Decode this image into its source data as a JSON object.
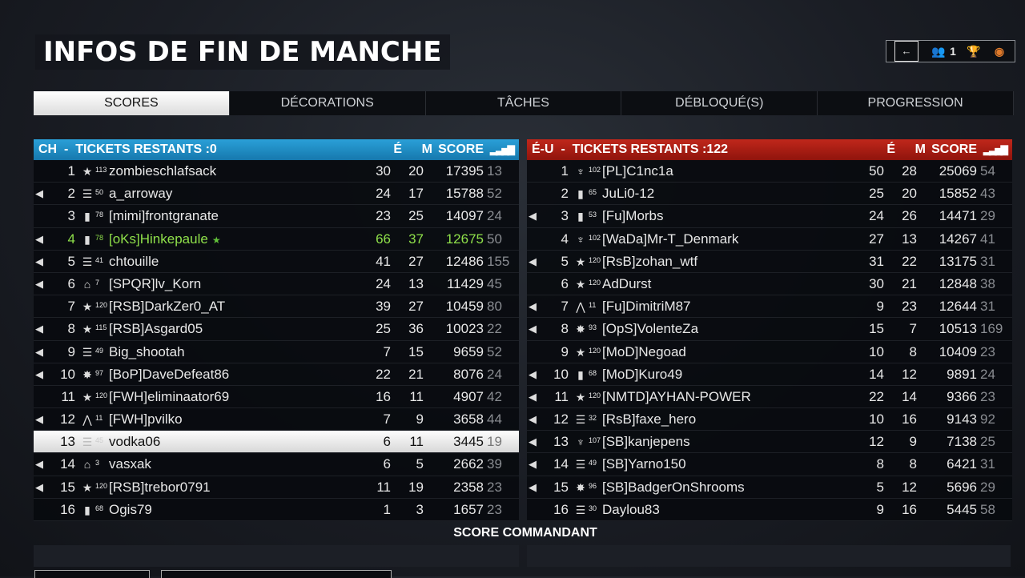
{
  "title": "INFOS DE FIN DE MANCHE",
  "top_icons": {
    "exit": "exit-icon",
    "squad_icon": "squad-icon",
    "squad_count": "1",
    "trophy": "trophy-icon",
    "globe": "globe-icon",
    "globe_color": "#e07a2a"
  },
  "tabs": [
    {
      "label": "SCORES",
      "active": true
    },
    {
      "label": "DÉCORATIONS"
    },
    {
      "label": "TÂCHES"
    },
    {
      "label": "DÉBLOQUÉ(S)"
    },
    {
      "label": "PROGRESSION"
    }
  ],
  "teams": [
    {
      "header": "CH  -  TICKETS RESTANTS :0",
      "col_kills": "É",
      "col_deaths": "M",
      "col_score": "SCORE",
      "col_ping": "signal-icon",
      "color": "#1f8fc8",
      "players": [
        {
          "rank": "1",
          "icon": "star",
          "level": "113",
          "name": "zombieschlafsack",
          "kills": "30",
          "deaths": "20",
          "score": "17395",
          "ping": "13",
          "voice": false
        },
        {
          "rank": "2",
          "icon": "chevrons",
          "level": "50",
          "name": "a_arroway",
          "kills": "24",
          "deaths": "17",
          "score": "15788",
          "ping": "52",
          "voice": true
        },
        {
          "rank": "3",
          "icon": "bar",
          "level": "78",
          "name": "[mimi]frontgranate",
          "kills": "23",
          "deaths": "25",
          "score": "14097",
          "ping": "24",
          "voice": false
        },
        {
          "rank": "4",
          "icon": "bar",
          "level": "78",
          "name": "[oKs]Hinkepaule",
          "kills": "66",
          "deaths": "37",
          "score": "12675",
          "ping": "50",
          "voice": true,
          "highlight": "friend"
        },
        {
          "rank": "5",
          "icon": "chevrons",
          "level": "41",
          "name": "chtouille",
          "kills": "41",
          "deaths": "27",
          "score": "12486",
          "ping": "155",
          "voice": true
        },
        {
          "rank": "6",
          "icon": "arch",
          "level": "7",
          "name": "[SPQR]lv_Korn",
          "kills": "24",
          "deaths": "13",
          "score": "11429",
          "ping": "45",
          "voice": true
        },
        {
          "rank": "7",
          "icon": "star",
          "level": "120",
          "name": "[RSB]DarkZer0_AT",
          "kills": "39",
          "deaths": "27",
          "score": "10459",
          "ping": "80",
          "voice": false
        },
        {
          "rank": "8",
          "icon": "star",
          "level": "115",
          "name": "[RSB]Asgard05",
          "kills": "25",
          "deaths": "36",
          "score": "10023",
          "ping": "22",
          "voice": true
        },
        {
          "rank": "9",
          "icon": "chevrons",
          "level": "49",
          "name": "Big_shootah",
          "kills": "7",
          "deaths": "15",
          "score": "9659",
          "ping": "52",
          "voice": true
        },
        {
          "rank": "10",
          "icon": "burst",
          "level": "97",
          "name": "[BoP]DaveDefeat86",
          "kills": "22",
          "deaths": "21",
          "score": "8076",
          "ping": "24",
          "voice": true
        },
        {
          "rank": "11",
          "icon": "star",
          "level": "120",
          "name": "[FWH]eliminaator69",
          "kills": "16",
          "deaths": "11",
          "score": "4907",
          "ping": "42",
          "voice": false
        },
        {
          "rank": "12",
          "icon": "double-chevron",
          "level": "11",
          "name": "[FWH]pvilko",
          "kills": "7",
          "deaths": "9",
          "score": "3658",
          "ping": "44",
          "voice": true
        },
        {
          "rank": "13",
          "icon": "chevrons",
          "level": "45",
          "name": "vodka06",
          "kills": "6",
          "deaths": "11",
          "score": "3445",
          "ping": "19",
          "voice": false,
          "highlight": "self"
        },
        {
          "rank": "14",
          "icon": "arch",
          "level": "3",
          "name": "vasxak",
          "kills": "6",
          "deaths": "5",
          "score": "2662",
          "ping": "39",
          "voice": true
        },
        {
          "rank": "15",
          "icon": "star",
          "level": "120",
          "name": "[RSB]trebor0791",
          "kills": "11",
          "deaths": "19",
          "score": "2358",
          "ping": "23",
          "voice": true
        },
        {
          "rank": "16",
          "icon": "bar",
          "level": "68",
          "name": "Ogis79",
          "kills": "1",
          "deaths": "3",
          "score": "1657",
          "ping": "23",
          "voice": false
        }
      ]
    },
    {
      "header": "É-U  -  TICKETS RESTANTS :122",
      "col_kills": "É",
      "col_deaths": "M",
      "col_score": "SCORE",
      "col_ping": "signal-icon",
      "color": "#b3241a",
      "players": [
        {
          "rank": "1",
          "icon": "eagle",
          "level": "102",
          "name": "[PL]C1nc1a",
          "kills": "50",
          "deaths": "28",
          "score": "25069",
          "ping": "54",
          "voice": false
        },
        {
          "rank": "2",
          "icon": "bar",
          "level": "65",
          "name": "JuLi0-12",
          "kills": "25",
          "deaths": "20",
          "score": "15852",
          "ping": "43",
          "voice": false
        },
        {
          "rank": "3",
          "icon": "bar",
          "level": "53",
          "name": "[Fu]Morbs",
          "kills": "24",
          "deaths": "26",
          "score": "14471",
          "ping": "29",
          "voice": true
        },
        {
          "rank": "4",
          "icon": "eagle",
          "level": "102",
          "name": "[WaDa]Mr-T_Denmark",
          "kills": "27",
          "deaths": "13",
          "score": "14267",
          "ping": "41",
          "voice": false
        },
        {
          "rank": "5",
          "icon": "star",
          "level": "120",
          "name": "[RsB]zohan_wtf",
          "kills": "31",
          "deaths": "22",
          "score": "13175",
          "ping": "31",
          "voice": true
        },
        {
          "rank": "6",
          "icon": "star",
          "level": "120",
          "name": "AdDurst",
          "kills": "30",
          "deaths": "21",
          "score": "12848",
          "ping": "38",
          "voice": false
        },
        {
          "rank": "7",
          "icon": "double-chevron",
          "level": "11",
          "name": "[Fu]DimitriM87",
          "kills": "9",
          "deaths": "23",
          "score": "12644",
          "ping": "31",
          "voice": true
        },
        {
          "rank": "8",
          "icon": "burst",
          "level": "93",
          "name": "[OpS]VolenteZa",
          "kills": "15",
          "deaths": "7",
          "score": "10513",
          "ping": "169",
          "voice": true
        },
        {
          "rank": "9",
          "icon": "star",
          "level": "120",
          "name": "[MoD]Negoad",
          "kills": "10",
          "deaths": "8",
          "score": "10409",
          "ping": "23",
          "voice": false
        },
        {
          "rank": "10",
          "icon": "bar",
          "level": "68",
          "name": "[MoD]Kuro49",
          "kills": "14",
          "deaths": "12",
          "score": "9891",
          "ping": "24",
          "voice": true
        },
        {
          "rank": "11",
          "icon": "star",
          "level": "120",
          "name": "[NMTD]AYHAN-POWER",
          "kills": "22",
          "deaths": "14",
          "score": "9366",
          "ping": "23",
          "voice": true
        },
        {
          "rank": "12",
          "icon": "chevrons",
          "level": "32",
          "name": "[RsB]faxe_hero",
          "kills": "10",
          "deaths": "16",
          "score": "9143",
          "ping": "92",
          "voice": true
        },
        {
          "rank": "13",
          "icon": "eagle",
          "level": "107",
          "name": "[SB]kanjepens",
          "kills": "12",
          "deaths": "9",
          "score": "7138",
          "ping": "25",
          "voice": true
        },
        {
          "rank": "14",
          "icon": "chevrons",
          "level": "49",
          "name": "[SB]Yarno150",
          "kills": "8",
          "deaths": "8",
          "score": "6421",
          "ping": "31",
          "voice": true
        },
        {
          "rank": "15",
          "icon": "burst",
          "level": "96",
          "name": "[SB]BadgerOnShrooms",
          "kills": "5",
          "deaths": "12",
          "score": "5696",
          "ping": "29",
          "voice": true
        },
        {
          "rank": "16",
          "icon": "chevrons",
          "level": "30",
          "name": "Daylou83",
          "kills": "9",
          "deaths": "16",
          "score": "5445",
          "ping": "58",
          "voice": false
        }
      ]
    }
  ],
  "commander_label": "SCORE COMMANDANT"
}
